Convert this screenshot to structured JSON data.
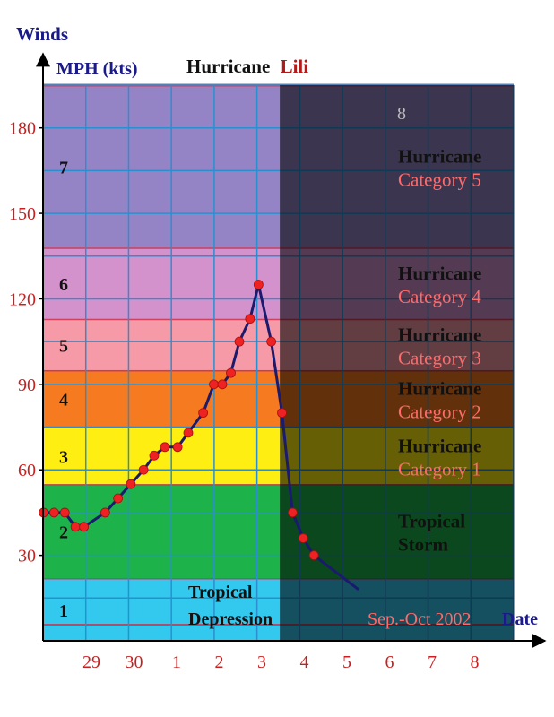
{
  "chart_data": {
    "type": "line",
    "title_part1": "Hurricane",
    "title_part2": "Lili",
    "y_axis_title": "Winds",
    "y_axis_unit": "MPH (kts)",
    "x_axis_title": "Date",
    "date_note": "Sep.-Oct 2002",
    "ylim": [
      0,
      195
    ],
    "y_ticks": [
      30,
      60,
      90,
      120,
      150,
      180
    ],
    "x_ticks": [
      {
        "label": "29",
        "day": 0
      },
      {
        "label": "30",
        "day": 1
      },
      {
        "label": "1",
        "day": 2
      },
      {
        "label": "2",
        "day": 3
      },
      {
        "label": "3",
        "day": 4
      },
      {
        "label": "4",
        "day": 5
      },
      {
        "label": "5",
        "day": 6
      },
      {
        "label": "6",
        "day": 7
      },
      {
        "label": "7",
        "day": 8
      },
      {
        "label": "8",
        "day": 9
      }
    ],
    "bands": [
      {
        "number": "1",
        "from": 0,
        "to": 22,
        "color": "#33c8ee",
        "labels": []
      },
      {
        "number": "2",
        "from": 22,
        "to": 55,
        "color": "#1db34a",
        "labels": [
          "Tropical",
          "Storm"
        ]
      },
      {
        "number": "3",
        "from": 55,
        "to": 75,
        "color": "#ffee11",
        "labels": [
          "Hurricane",
          "Category 1"
        ]
      },
      {
        "number": "4",
        "from": 75,
        "to": 95,
        "color": "#f57a20",
        "labels": [
          "Hurricane",
          "Category 2"
        ]
      },
      {
        "number": "5",
        "from": 95,
        "to": 113,
        "color": "#f59aa6",
        "labels": [
          "Hurricane",
          "Category 3"
        ]
      },
      {
        "number": "6",
        "from": 113,
        "to": 138,
        "color": "#d392cc",
        "labels": [
          "Hurricane",
          "Category 4"
        ]
      },
      {
        "number": "7",
        "from": 138,
        "to": 195,
        "color": "#9484c6",
        "labels": [
          "Hurricane",
          "Category 5"
        ]
      }
    ],
    "depression_label": [
      "Tropical",
      "Depression"
    ],
    "right_region_number": "8",
    "series": [
      {
        "points": [
          {
            "day": -1.0,
            "mph": 45,
            "marker": true
          },
          {
            "day": -0.75,
            "mph": 45,
            "marker": true
          },
          {
            "day": -0.5,
            "mph": 45,
            "marker": true
          },
          {
            "day": -0.25,
            "mph": 40,
            "marker": true
          },
          {
            "day": -0.05,
            "mph": 40,
            "marker": true
          },
          {
            "day": 0.45,
            "mph": 45,
            "marker": true
          },
          {
            "day": 0.75,
            "mph": 50,
            "marker": true
          },
          {
            "day": 1.05,
            "mph": 55,
            "marker": true
          },
          {
            "day": 1.35,
            "mph": 60,
            "marker": true
          },
          {
            "day": 1.6,
            "mph": 65,
            "marker": true
          },
          {
            "day": 1.85,
            "mph": 68,
            "marker": true
          },
          {
            "day": 2.15,
            "mph": 68,
            "marker": true
          },
          {
            "day": 2.4,
            "mph": 73,
            "marker": true
          },
          {
            "day": 2.75,
            "mph": 80,
            "marker": true
          },
          {
            "day": 3.0,
            "mph": 90,
            "marker": true
          },
          {
            "day": 3.2,
            "mph": 90,
            "marker": true
          },
          {
            "day": 3.4,
            "mph": 94,
            "marker": true
          },
          {
            "day": 3.6,
            "mph": 105,
            "marker": true
          },
          {
            "day": 3.85,
            "mph": 113,
            "marker": true
          },
          {
            "day": 4.05,
            "mph": 125,
            "marker": true
          },
          {
            "day": 4.35,
            "mph": 105,
            "marker": true
          },
          {
            "day": 4.6,
            "mph": 80,
            "marker": true
          },
          {
            "day": 4.85,
            "mph": 45,
            "marker": true
          },
          {
            "day": 5.1,
            "mph": 36,
            "marker": true
          },
          {
            "day": 5.35,
            "mph": 30,
            "marker": true
          },
          {
            "day": 6.4,
            "mph": 18,
            "marker": false
          }
        ]
      }
    ],
    "forecast_boundary_day": 4.55,
    "colors": {
      "title_blue": "#1a1a8a",
      "title_red": "#b21a1a",
      "tick_red": "#cc1e1e",
      "grid": "#2b8fcf",
      "line": "#1a1a6e",
      "marker": "#ee2222",
      "category_red": "#ff6a6a",
      "forecast_tint": "#000000"
    }
  }
}
